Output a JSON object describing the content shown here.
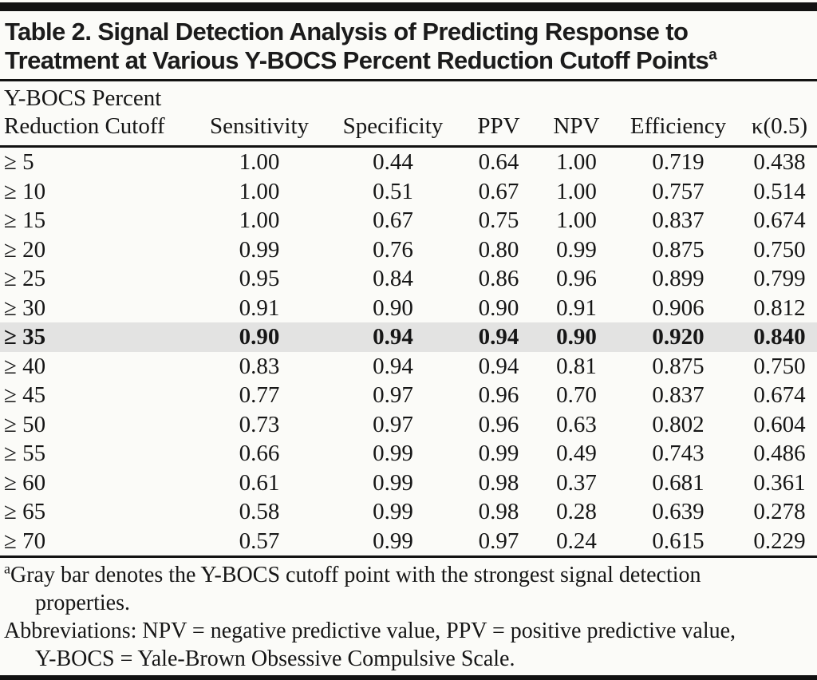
{
  "title": {
    "line1": "Table 2. Signal Detection Analysis of Predicting Response to",
    "line2": "Treatment at Various Y-BOCS Percent Reduction Cutoff Points",
    "superscript": "a"
  },
  "header": {
    "col1_line1": "Y-BOCS Percent",
    "col1_line2": "Reduction Cutoff",
    "columns": [
      "Sensitivity",
      "Specificity",
      "PPV",
      "NPV",
      "Efficiency",
      "κ(0.5)"
    ]
  },
  "rows": [
    {
      "cutoff": "≥ 5",
      "values": [
        "1.00",
        "0.44",
        "0.64",
        "1.00",
        "0.719",
        "0.438"
      ],
      "highlighted": false
    },
    {
      "cutoff": "≥ 10",
      "values": [
        "1.00",
        "0.51",
        "0.67",
        "1.00",
        "0.757",
        "0.514"
      ],
      "highlighted": false
    },
    {
      "cutoff": "≥ 15",
      "values": [
        "1.00",
        "0.67",
        "0.75",
        "1.00",
        "0.837",
        "0.674"
      ],
      "highlighted": false
    },
    {
      "cutoff": "≥ 20",
      "values": [
        "0.99",
        "0.76",
        "0.80",
        "0.99",
        "0.875",
        "0.750"
      ],
      "highlighted": false
    },
    {
      "cutoff": "≥ 25",
      "values": [
        "0.95",
        "0.84",
        "0.86",
        "0.96",
        "0.899",
        "0.799"
      ],
      "highlighted": false
    },
    {
      "cutoff": "≥ 30",
      "values": [
        "0.91",
        "0.90",
        "0.90",
        "0.91",
        "0.906",
        "0.812"
      ],
      "highlighted": false
    },
    {
      "cutoff": "≥ 35",
      "values": [
        "0.90",
        "0.94",
        "0.94",
        "0.90",
        "0.920",
        "0.840"
      ],
      "highlighted": true
    },
    {
      "cutoff": "≥ 40",
      "values": [
        "0.83",
        "0.94",
        "0.94",
        "0.81",
        "0.875",
        "0.750"
      ],
      "highlighted": false
    },
    {
      "cutoff": "≥ 45",
      "values": [
        "0.77",
        "0.97",
        "0.96",
        "0.70",
        "0.837",
        "0.674"
      ],
      "highlighted": false
    },
    {
      "cutoff": "≥ 50",
      "values": [
        "0.73",
        "0.97",
        "0.96",
        "0.63",
        "0.802",
        "0.604"
      ],
      "highlighted": false
    },
    {
      "cutoff": "≥ 55",
      "values": [
        "0.66",
        "0.99",
        "0.99",
        "0.49",
        "0.743",
        "0.486"
      ],
      "highlighted": false
    },
    {
      "cutoff": "≥ 60",
      "values": [
        "0.61",
        "0.99",
        "0.98",
        "0.37",
        "0.681",
        "0.361"
      ],
      "highlighted": false
    },
    {
      "cutoff": "≥ 65",
      "values": [
        "0.58",
        "0.99",
        "0.98",
        "0.28",
        "0.639",
        "0.278"
      ],
      "highlighted": false
    },
    {
      "cutoff": "≥ 70",
      "values": [
        "0.57",
        "0.99",
        "0.97",
        "0.24",
        "0.615",
        "0.229"
      ],
      "highlighted": false
    }
  ],
  "footnotes": [
    {
      "superscript": "a",
      "lines": [
        "Gray bar denotes the Y-BOCS cutoff point with the strongest signal detection",
        "properties."
      ]
    },
    {
      "superscript": "",
      "lines": [
        "Abbreviations: NPV = negative predictive value, PPV = positive predictive value,",
        "Y-BOCS = Yale-Brown Obsessive Compulsive Scale."
      ]
    }
  ],
  "colors": {
    "background": "#fbfbf8",
    "rule": "#121212",
    "text": "#161616",
    "highlight_row": "#e3e3e2"
  }
}
